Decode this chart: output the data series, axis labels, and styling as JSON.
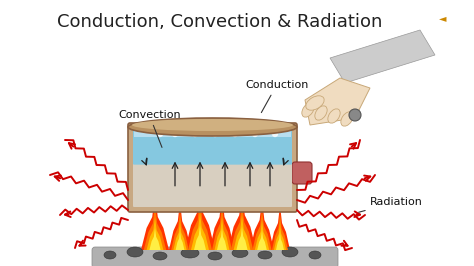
{
  "title": "Conduction, Convection & Radiation",
  "title_fontsize": 13,
  "bg_color": "#ffffff",
  "label_convection": "Convection",
  "label_conduction": "Conduction",
  "label_radiation": "Radiation",
  "label_fontsize": 8,
  "water_color": "#85c8e0",
  "water_surface_color": "#b8dff0",
  "pot_body_color": "#c8a882",
  "pot_edge_color": "#8a6040",
  "pot_inner_color": "#d4b090",
  "handle_color": "#c06060",
  "fire_colors": [
    "#ff2200",
    "#ff6600",
    "#ffaa00",
    "#ffdd00"
  ],
  "coal_color": "#666666",
  "coal_ground_color": "#aaaaaa",
  "radiation_color": "#cc0000",
  "arm_color": "#cccccc",
  "skin_color": "#f0dcc0",
  "arrow_color": "#222222",
  "speaker_color": "#cc8800"
}
